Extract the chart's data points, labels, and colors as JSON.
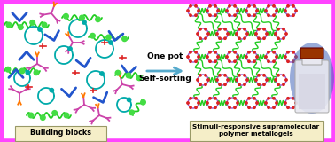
{
  "border_color": "#FF44FF",
  "background_color": "#FFFFFF",
  "label_box_color": "#F5EEC8",
  "label_box_edgecolor": "#999966",
  "label_left": "Building blocks",
  "label_right": "Stimuli-responsive supramolecular\npolymer metallogels",
  "arrow_text_line1": "One pot",
  "arrow_text_line2": "Self-sorting",
  "arrow_color": "#55AACC",
  "fig_width": 3.78,
  "fig_height": 1.6,
  "dpi": 100,
  "colors": {
    "blue": "#2255CC",
    "teal": "#00AAAA",
    "green": "#22CC22",
    "magenta": "#CC44AA",
    "orange": "#FF7700",
    "red": "#DD2222",
    "lime": "#44DD44",
    "dark_teal": "#009999",
    "purple": "#9955CC",
    "ring_outline": "#CC44AA",
    "ring_dot": "#5566DD"
  }
}
